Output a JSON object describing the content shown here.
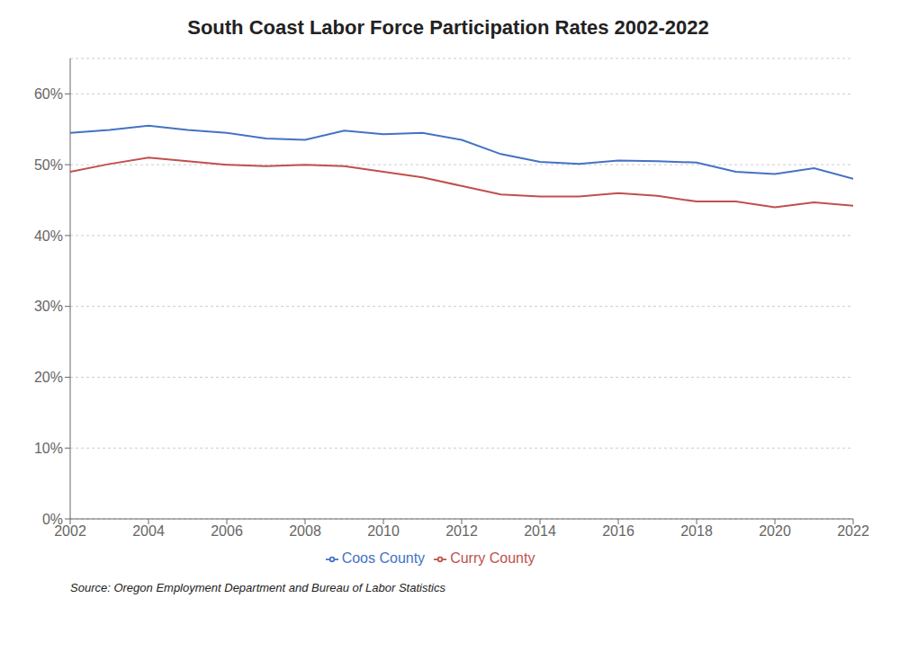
{
  "chart_data": {
    "type": "line",
    "title": "South Coast Labor Force Participation Rates 2002-2022",
    "annotations": [
      "Source: Oregon Employment Department and Bureau of Labor Statistics"
    ],
    "x": [
      2002,
      2003,
      2004,
      2005,
      2006,
      2007,
      2008,
      2009,
      2010,
      2011,
      2012,
      2013,
      2014,
      2015,
      2016,
      2017,
      2018,
      2019,
      2020,
      2021,
      2022
    ],
    "series": [
      {
        "name": "Coos County",
        "color": "#4472C4",
        "values": [
          54.5,
          54.9,
          55.5,
          54.9,
          54.5,
          53.7,
          53.5,
          54.8,
          54.3,
          54.5,
          53.5,
          51.5,
          50.4,
          50.1,
          50.6,
          50.5,
          50.3,
          49.0,
          48.7,
          49.5,
          48.0
        ]
      },
      {
        "name": "Curry County",
        "color": "#C0504D",
        "values": [
          49.0,
          50.1,
          51.0,
          50.5,
          50.0,
          49.8,
          50.0,
          49.8,
          49.0,
          48.2,
          47.0,
          45.8,
          45.5,
          45.5,
          46.0,
          45.6,
          44.8,
          44.8,
          44.0,
          44.7,
          44.2
        ]
      }
    ],
    "xlim": [
      2002,
      2022
    ],
    "xticks": [
      2002,
      2004,
      2006,
      2008,
      2010,
      2012,
      2014,
      2016,
      2018,
      2020,
      2022
    ],
    "ylim": [
      0,
      65
    ],
    "yticks": [
      {
        "value": 0,
        "label": "0%"
      },
      {
        "value": 10,
        "label": "10%"
      },
      {
        "value": 20,
        "label": "20%"
      },
      {
        "value": 30,
        "label": "30%"
      },
      {
        "value": 40,
        "label": "40%"
      },
      {
        "value": 50,
        "label": "50%"
      },
      {
        "value": 60,
        "label": "60%"
      }
    ],
    "grid": true,
    "legend": "bottom"
  }
}
